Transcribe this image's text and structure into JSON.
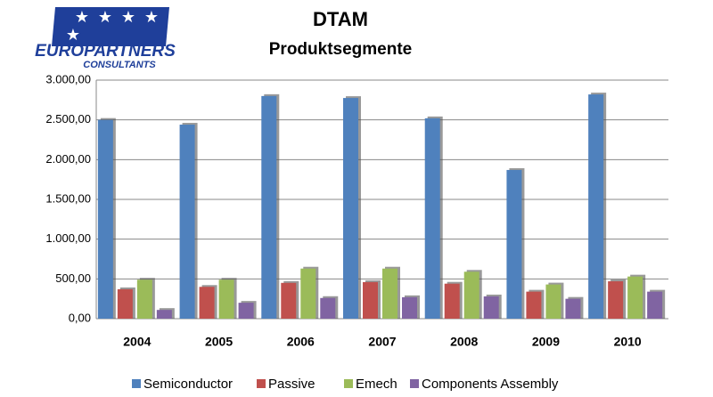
{
  "logo": {
    "line1": "EUROPARTNERS",
    "line2": "CONSULTANTS"
  },
  "chart_data": {
    "type": "bar",
    "title": "DTAM",
    "subtitle": "Produktsegmente",
    "categories": [
      "2004",
      "2005",
      "2006",
      "2007",
      "2008",
      "2009",
      "2010"
    ],
    "series": [
      {
        "name": "Semiconductor",
        "color": "#4f81bd",
        "values": [
          2500,
          2440,
          2800,
          2775,
          2520,
          1870,
          2820
        ]
      },
      {
        "name": "Passive",
        "color": "#c0504d",
        "values": [
          370,
          400,
          450,
          460,
          440,
          340,
          470
        ]
      },
      {
        "name": "Emech",
        "color": "#9bbb59",
        "values": [
          490,
          490,
          630,
          630,
          590,
          430,
          530
        ]
      },
      {
        "name": "Components Assembly",
        "color": "#8064a2",
        "values": [
          110,
          200,
          260,
          270,
          280,
          250,
          340
        ]
      }
    ],
    "ylim": [
      0,
      3000
    ],
    "yticks": [
      {
        "value": 0,
        "label": "0,00"
      },
      {
        "value": 500,
        "label": "500,00"
      },
      {
        "value": 1000,
        "label": "1.000,00"
      },
      {
        "value": 1500,
        "label": "1.500,00"
      },
      {
        "value": 2000,
        "label": "2.000,00"
      },
      {
        "value": 2500,
        "label": "2.500,00"
      },
      {
        "value": 3000,
        "label": "3.000,00"
      }
    ],
    "grid": true,
    "legend": "bottom"
  }
}
